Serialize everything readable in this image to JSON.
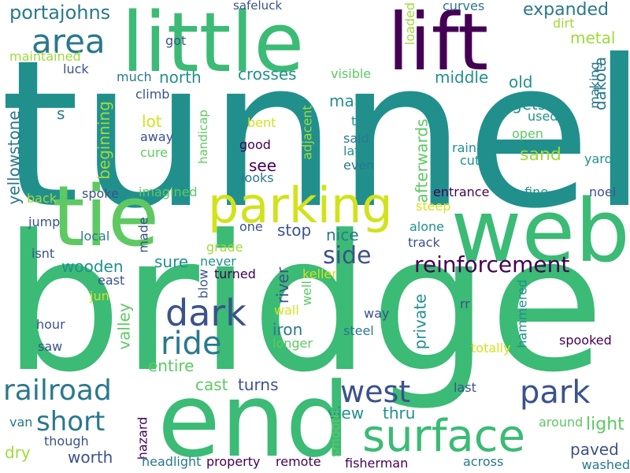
{
  "words": [
    {
      "text": "tunnel",
      "color": "#21908d"
    },
    {
      "text": "bridge",
      "color": "#3bbb75"
    },
    {
      "text": "end",
      "color": "#3bbb75"
    },
    {
      "text": "web",
      "color": "#3bbb75"
    },
    {
      "text": "little",
      "color": "#3bbb75"
    },
    {
      "text": "lift",
      "color": "#440154"
    },
    {
      "text": "tie",
      "color": "#5ec962"
    },
    {
      "text": "parking",
      "color": "#d2e21b"
    },
    {
      "text": "surface",
      "color": "#3bbb75"
    },
    {
      "text": "area",
      "color": "#2a788e"
    },
    {
      "text": "dark",
      "color": "#3b528b"
    },
    {
      "text": "ride",
      "color": "#2a788e"
    },
    {
      "text": "park",
      "color": "#3b528b"
    },
    {
      "text": "west",
      "color": "#3b528b"
    },
    {
      "text": "railroad",
      "color": "#2a788e"
    },
    {
      "text": "short",
      "color": "#2a788e"
    },
    {
      "text": "reinforcement",
      "color": "#440154"
    },
    {
      "text": "side",
      "color": "#3b528b"
    },
    {
      "text": "portajohns",
      "color": "#2a788e"
    },
    {
      "text": "expanded",
      "color": "#2a788e"
    },
    {
      "text": "metal",
      "color": "#a0da39"
    },
    {
      "text": "make",
      "color": "#21908d"
    },
    {
      "text": "safeluck",
      "color": "#3b528b"
    },
    {
      "text": "curves",
      "color": "#2a788e"
    },
    {
      "text": "loaded",
      "color": "#a0da39"
    },
    {
      "text": "dirt",
      "color": "#a0da39"
    },
    {
      "text": "got",
      "color": "#3b528b"
    },
    {
      "text": "maintained",
      "color": "#a0da39"
    },
    {
      "text": "luck",
      "color": "#3b528b"
    },
    {
      "text": "much",
      "color": "#2a788e"
    },
    {
      "text": "north",
      "color": "#21908d"
    },
    {
      "text": "crosses",
      "color": "#21908d"
    },
    {
      "text": "visible",
      "color": "#5ec962"
    },
    {
      "text": "middle",
      "color": "#21908d"
    },
    {
      "text": "old",
      "color": "#21908d"
    },
    {
      "text": "gets",
      "color": "#21908d"
    },
    {
      "text": "dakota",
      "color": "#2a788e"
    },
    {
      "text": "making",
      "color": "#2a788e"
    },
    {
      "text": "used",
      "color": "#21908d"
    },
    {
      "text": "climb",
      "color": "#3b528b"
    },
    {
      "text": "lot",
      "color": "#d2e21b"
    },
    {
      "text": "beginning",
      "color": "#a0da39"
    },
    {
      "text": "handicap",
      "color": "#5ec962"
    },
    {
      "text": "bent",
      "color": "#d2e21b"
    },
    {
      "text": "adjacent",
      "color": "#a0da39"
    },
    {
      "text": "tire",
      "color": "#21908d"
    },
    {
      "text": "said",
      "color": "#2a788e"
    },
    {
      "text": "open",
      "color": "#5ec962"
    },
    {
      "text": "away",
      "color": "#3b528b"
    },
    {
      "text": "cure",
      "color": "#5ec962"
    },
    {
      "text": "good",
      "color": "#440154"
    },
    {
      "text": "later",
      "color": "#21908d"
    },
    {
      "text": "even",
      "color": "#2a788e"
    },
    {
      "text": "rain",
      "color": "#21908d"
    },
    {
      "text": "sand",
      "color": "#a0da39"
    },
    {
      "text": "cut",
      "color": "#21908d"
    },
    {
      "text": "afterwards",
      "color": "#5ec962"
    },
    {
      "text": "yards",
      "color": "#21908d"
    },
    {
      "text": "yellowstone",
      "color": "#2a788e"
    },
    {
      "text": "see",
      "color": "#440154"
    },
    {
      "text": "looks",
      "color": "#2a788e"
    },
    {
      "text": "s",
      "color": "#2a788e"
    },
    {
      "text": "back",
      "color": "#a0da39"
    },
    {
      "text": "spoke",
      "color": "#3b528b"
    },
    {
      "text": "imagined",
      "color": "#5ec962"
    },
    {
      "text": "entrance",
      "color": "#440154"
    },
    {
      "text": "fine",
      "color": "#21908d"
    },
    {
      "text": "noel",
      "color": "#3b528b"
    },
    {
      "text": "steep",
      "color": "#d2e21b"
    },
    {
      "text": "jump",
      "color": "#3b528b"
    },
    {
      "text": "one",
      "color": "#3b528b"
    },
    {
      "text": "stop",
      "color": "#3b528b"
    },
    {
      "text": "alone",
      "color": "#21908d"
    },
    {
      "text": "local",
      "color": "#2a788e"
    },
    {
      "text": "made",
      "color": "#3b528b"
    },
    {
      "text": "nice",
      "color": "#2a788e"
    },
    {
      "text": "track",
      "color": "#3b528b"
    },
    {
      "text": "isnt",
      "color": "#3b528b"
    },
    {
      "text": "grade",
      "color": "#a0da39"
    },
    {
      "text": "wooden",
      "color": "#21908d"
    },
    {
      "text": "sure",
      "color": "#21908d"
    },
    {
      "text": "never",
      "color": "#21908d"
    },
    {
      "text": "keller",
      "color": "#d2e21b"
    },
    {
      "text": "east",
      "color": "#3b528b"
    },
    {
      "text": "turned",
      "color": "#440154"
    },
    {
      "text": "river",
      "color": "#3b528b"
    },
    {
      "text": "blow",
      "color": "#3b528b"
    },
    {
      "text": "jun",
      "color": "#d2e21b"
    },
    {
      "text": "well",
      "color": "#5ec962"
    },
    {
      "text": "wall",
      "color": "#d2e21b"
    },
    {
      "text": "rr",
      "color": "#3b528b"
    },
    {
      "text": "valley",
      "color": "#5ec962"
    },
    {
      "text": "way",
      "color": "#3b528b"
    },
    {
      "text": "hammered",
      "color": "#21908d"
    },
    {
      "text": "private",
      "color": "#21908d"
    },
    {
      "text": "hour",
      "color": "#3b528b"
    },
    {
      "text": "iron",
      "color": "#2a788e"
    },
    {
      "text": "steel",
      "color": "#2a788e"
    },
    {
      "text": "longer",
      "color": "#5ec962"
    },
    {
      "text": "spooked",
      "color": "#440154"
    },
    {
      "text": "saw",
      "color": "#3b528b"
    },
    {
      "text": "totally",
      "color": "#d2e21b"
    },
    {
      "text": "entire",
      "color": "#5ec962"
    },
    {
      "text": "cast",
      "color": "#5ec962"
    },
    {
      "text": "turns",
      "color": "#3b528b"
    },
    {
      "text": "last",
      "color": "#3b528b"
    },
    {
      "text": "light",
      "color": "#5ec962"
    },
    {
      "text": "around",
      "color": "#5ec962"
    },
    {
      "text": "view",
      "color": "#21908d"
    },
    {
      "text": "thru",
      "color": "#21908d"
    },
    {
      "text": "smooth",
      "color": "#5ec962"
    },
    {
      "text": "van",
      "color": "#2a788e"
    },
    {
      "text": "hazard",
      "color": "#440154"
    },
    {
      "text": "though",
      "color": "#3b528b"
    },
    {
      "text": "paved",
      "color": "#3b528b"
    },
    {
      "text": "dry",
      "color": "#a0da39"
    },
    {
      "text": "worth",
      "color": "#3b528b"
    },
    {
      "text": "headlight",
      "color": "#2a788e"
    },
    {
      "text": "property",
      "color": "#440154"
    },
    {
      "text": "remote",
      "color": "#440154"
    },
    {
      "text": "fisherman",
      "color": "#440154"
    },
    {
      "text": "across",
      "color": "#2a788e"
    },
    {
      "text": "washed",
      "color": "#2a788e"
    }
  ]
}
